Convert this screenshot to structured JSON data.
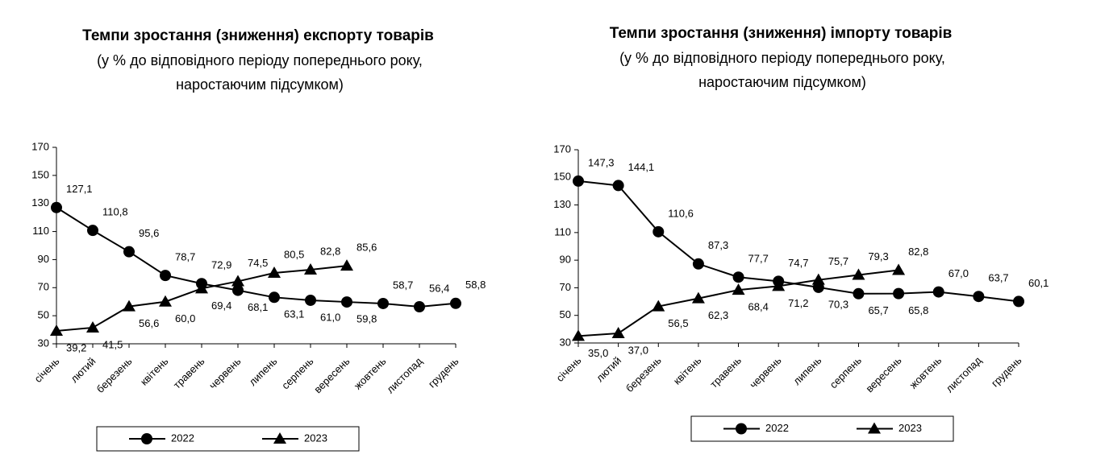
{
  "chart_data": [
    {
      "type": "line",
      "title": "Темпи зростання (зниження) експорту товарів",
      "subtitle": [
        "(у % до відповідного періоду попереднього року,",
        "наростаючим підсумком)"
      ],
      "categories": [
        "січень",
        "лютий",
        "березень",
        "квітень",
        "травень",
        "червень",
        "липень",
        "серпень",
        "вересень",
        "жовтень",
        "листопад",
        "грудень"
      ],
      "series": [
        {
          "name": "2022",
          "color": "#000000",
          "marker": "circle",
          "values": [
            127.1,
            110.8,
            95.6,
            78.7,
            72.9,
            68.1,
            63.1,
            61.0,
            59.8,
            58.7,
            56.4,
            58.8
          ],
          "value_labels": [
            "127,1",
            "110,8",
            "95,6",
            "78,7",
            "72,9",
            "68,1",
            "63,1",
            "61,0",
            "59,8",
            "58,7",
            "56,4",
            "58,8"
          ]
        },
        {
          "name": "2023",
          "color": "#000000",
          "marker": "triangle",
          "values": [
            39.2,
            41.5,
            56.6,
            60.0,
            69.4,
            74.5,
            80.5,
            82.8,
            85.6,
            null,
            null,
            null
          ],
          "value_labels": [
            "39,2",
            "41,5",
            "56,6",
            "60,0",
            "69,4",
            "74,5",
            "80,5",
            "82,8",
            "85,6",
            null,
            null,
            null
          ]
        }
      ],
      "ylim": [
        30,
        170
      ],
      "yticks": [
        30,
        50,
        70,
        90,
        110,
        130,
        150,
        170
      ],
      "grid": false,
      "legend": "bottom"
    },
    {
      "type": "line",
      "title": "Темпи зростання (зниження) імпорту товарів",
      "subtitle": [
        "(у % до відповідного періоду попереднього року,",
        "наростаючим підсумком)"
      ],
      "categories": [
        "січень",
        "лютий",
        "березень",
        "квітень",
        "травень",
        "червень",
        "липень",
        "серпень",
        "вересень",
        "жовтень",
        "листопад",
        "грудень"
      ],
      "series": [
        {
          "name": "2022",
          "color": "#000000",
          "marker": "circle",
          "values": [
            147.3,
            144.1,
            110.6,
            87.3,
            77.7,
            74.7,
            70.3,
            65.7,
            65.8,
            67.0,
            63.7,
            60.1
          ],
          "value_labels": [
            "147,3",
            "144,1",
            "110,6",
            "87,3",
            "77,7",
            "74,7",
            "70,3",
            "65,7",
            "65,8",
            "67,0",
            "63,7",
            "60,1"
          ]
        },
        {
          "name": "2023",
          "color": "#000000",
          "marker": "triangle",
          "values": [
            35.0,
            37.0,
            56.5,
            62.3,
            68.4,
            71.2,
            75.7,
            79.3,
            82.8,
            null,
            null,
            null
          ],
          "value_labels": [
            "35,0",
            "37,0",
            "56,5",
            "62,3",
            "68,4",
            "71,2",
            "75,7",
            "79,3",
            "82,8",
            null,
            null,
            null
          ]
        }
      ],
      "ylim": [
        30,
        170
      ],
      "yticks": [
        30,
        50,
        70,
        90,
        110,
        130,
        150,
        170
      ],
      "grid": false,
      "legend": "bottom"
    }
  ]
}
